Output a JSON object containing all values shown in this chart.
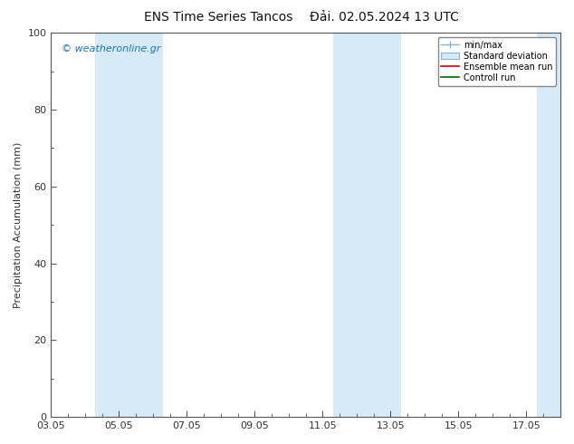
{
  "title_left": "ENS Time Series Tancos",
  "title_right": "Đải. 02.05.2024 13 UTC",
  "ylabel": "Precipitation Accumulation (mm)",
  "watermark": "© weatheronline.gr",
  "watermark_color": "#1a75bc",
  "ylim": [
    0,
    100
  ],
  "yticks": [
    0,
    20,
    40,
    60,
    80,
    100
  ],
  "xlim": [
    0,
    15
  ],
  "xtick_labels": [
    "03.05",
    "05.05",
    "07.05",
    "09.05",
    "11.05",
    "13.05",
    "15.05",
    "17.05"
  ],
  "xtick_positions_days": [
    0,
    2,
    4,
    6,
    8,
    10,
    12,
    14
  ],
  "shaded_bands": [
    {
      "start_day": 1.3,
      "end_day": 3.3
    },
    {
      "start_day": 8.3,
      "end_day": 10.3
    },
    {
      "start_day": 14.3,
      "end_day": 15.2
    }
  ],
  "band_color": "#d6eaf8",
  "legend_labels": [
    "min/max",
    "Standard deviation",
    "Ensemble mean run",
    "Controll run"
  ],
  "legend_line_colors": [
    "#8ab4cc",
    "#8ab4cc",
    "#cc0000",
    "#006600"
  ],
  "background_color": "#ffffff",
  "plot_bg_color": "#ffffff",
  "border_color": "#555555",
  "tick_color": "#333333",
  "title_fontsize": 10,
  "label_fontsize": 8,
  "tick_fontsize": 8,
  "watermark_fontsize": 8
}
